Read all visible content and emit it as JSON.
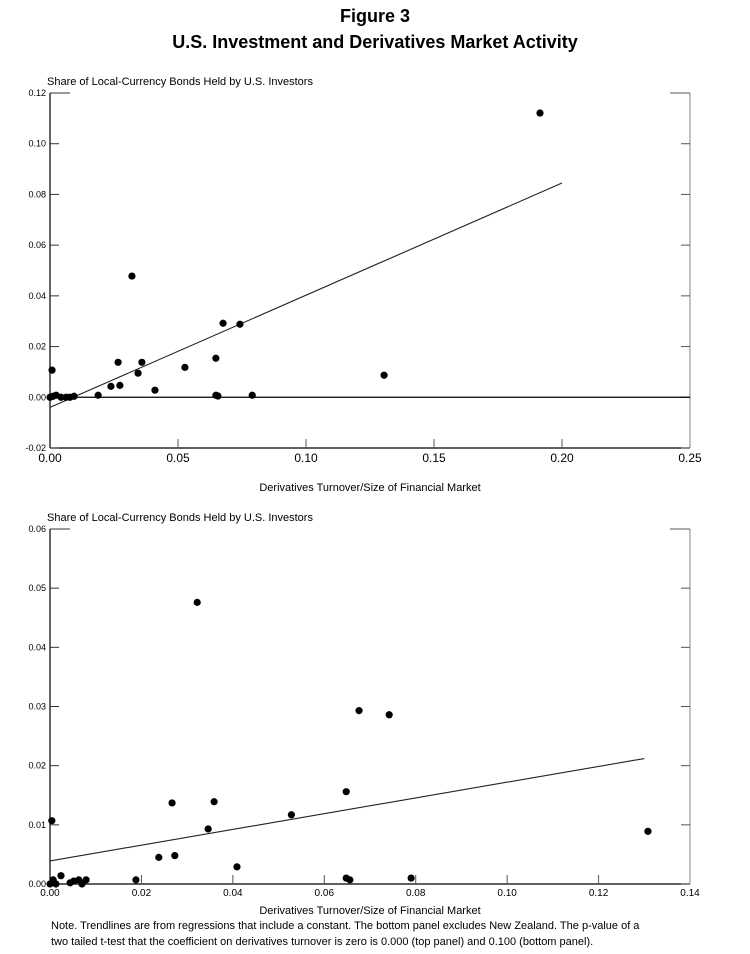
{
  "figure": {
    "number": "Figure 3",
    "title": "U.S. Investment and Derivatives Market Activity"
  },
  "note": {
    "line1": "Note. Trendlines are from regressions that include a constant.  The bottom panel excludes New Zealand.  The p-value of a",
    "line2": "two tailed t-test that the coefficient on derivatives turnover is zero is 0.000 (top panel) and 0.100 (bottom panel)."
  },
  "chart_data": [
    {
      "type": "scatter",
      "panel": "top",
      "title": "",
      "ylabel": "Share of Local-Currency Bonds Held by U.S. Investors",
      "xlabel": "Derivatives Turnover/Size of Financial Market",
      "xlim": [
        0,
        0.25
      ],
      "ylim": [
        -0.02,
        0.12
      ],
      "xticks": [
        "0.00",
        "0.05",
        "0.10",
        "0.15",
        "0.20",
        "0.25"
      ],
      "yticks": [
        "-0.02",
        "0.00",
        "0.02",
        "0.04",
        "0.06",
        "0.08",
        "0.10",
        "0.12"
      ],
      "grid": false,
      "zero_line": true,
      "points": [
        [
          0.0,
          0.0
        ],
        [
          0.0008,
          0.0107
        ],
        [
          0.0012,
          0.0004
        ],
        [
          0.0024,
          0.0008
        ],
        [
          0.0043,
          0.0
        ],
        [
          0.0063,
          0.0
        ],
        [
          0.0078,
          0.0
        ],
        [
          0.0094,
          0.0004
        ],
        [
          0.0188,
          0.0008
        ],
        [
          0.0238,
          0.0043
        ],
        [
          0.0266,
          0.0138
        ],
        [
          0.0273,
          0.0047
        ],
        [
          0.032,
          0.0478
        ],
        [
          0.0344,
          0.0095
        ],
        [
          0.0359,
          0.0138
        ],
        [
          0.041,
          0.0028
        ],
        [
          0.0527,
          0.0118
        ],
        [
          0.0648,
          0.0154
        ],
        [
          0.0648,
          0.0008
        ],
        [
          0.0656,
          0.0005
        ],
        [
          0.0676,
          0.0292
        ],
        [
          0.0742,
          0.0288
        ],
        [
          0.079,
          0.0008
        ],
        [
          0.1305,
          0.0087
        ],
        [
          0.1914,
          0.1121
        ]
      ],
      "trendline": {
        "x": [
          0.0,
          0.2
        ],
        "y": [
          -0.004,
          0.0845
        ]
      }
    },
    {
      "type": "scatter",
      "panel": "bottom",
      "title": "",
      "ylabel": "Share of Local-Currency Bonds Held by U.S. Investors",
      "xlabel": "Derivatives Turnover/Size of Financial Market",
      "xlim": [
        0,
        0.14
      ],
      "ylim": [
        0,
        0.06
      ],
      "xticks": [
        "0.00",
        "0.02",
        "0.04",
        "0.06",
        "0.08",
        "0.10",
        "0.12",
        "0.14"
      ],
      "yticks": [
        "0.00",
        "0.01",
        "0.02",
        "0.03",
        "0.04",
        "0.05",
        "0.06"
      ],
      "grid": false,
      "zero_line": false,
      "points": [
        [
          0.0,
          0.0
        ],
        [
          0.0007,
          0.0007
        ],
        [
          0.0013,
          0.0
        ],
        [
          0.0024,
          0.0014
        ],
        [
          0.0044,
          0.0002
        ],
        [
          0.0052,
          0.0005
        ],
        [
          0.0063,
          0.0007
        ],
        [
          0.007,
          0.0
        ],
        [
          0.0079,
          0.0007
        ],
        [
          0.0188,
          0.0007
        ],
        [
          0.0004,
          0.0107
        ],
        [
          0.0238,
          0.0045
        ],
        [
          0.0267,
          0.0137
        ],
        [
          0.0273,
          0.0048
        ],
        [
          0.0346,
          0.0093
        ],
        [
          0.0359,
          0.0139
        ],
        [
          0.0409,
          0.0029
        ],
        [
          0.0528,
          0.0117
        ],
        [
          0.0648,
          0.0156
        ],
        [
          0.0648,
          0.001
        ],
        [
          0.0656,
          0.0007
        ],
        [
          0.0676,
          0.0293
        ],
        [
          0.0742,
          0.0286
        ],
        [
          0.079,
          0.001
        ],
        [
          0.0322,
          0.0476
        ],
        [
          0.1308,
          0.0089
        ]
      ],
      "trendline": {
        "x": [
          0.0,
          0.13
        ],
        "y": [
          0.0039,
          0.0212
        ]
      }
    }
  ]
}
